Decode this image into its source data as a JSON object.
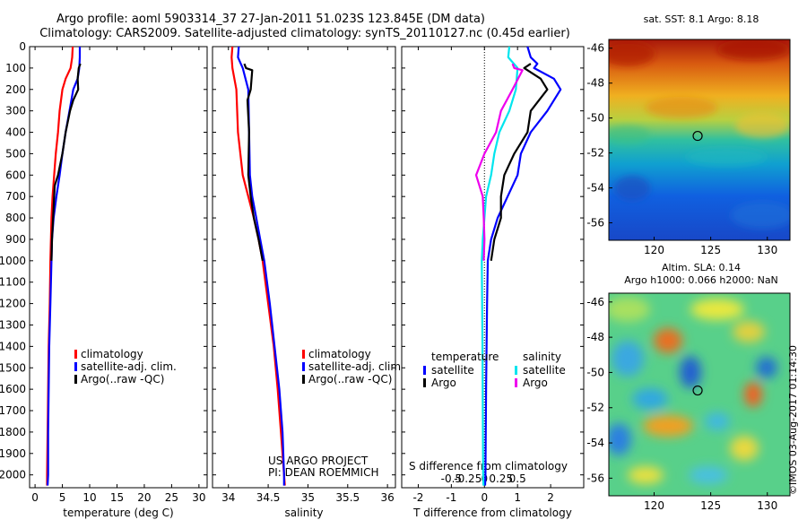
{
  "header": {
    "title_line1": "Argo profile: aoml 5903314_37 27-Jan-2011 51.023S 123.845E (DM data)",
    "title_line2": "Climatology: CARS2009. Satellite-adjusted climatology: synTS_20110127.nc (0.45d earlier)"
  },
  "colors": {
    "climatology": "#ff0000",
    "satellite": "#0000ff",
    "argo": "#000000",
    "sal_satellite": "#00e5ee",
    "sal_argo": "#ee00ee"
  },
  "chart_data": [
    {
      "id": "temperature",
      "type": "line",
      "xlabel": "temperature (deg C)",
      "ylabel": "",
      "xlim": [
        -1,
        31.5
      ],
      "ylim": [
        2060,
        0
      ],
      "xticks": [
        0,
        5,
        10,
        15,
        20,
        25,
        30
      ],
      "yticks": [
        0,
        100,
        200,
        300,
        400,
        500,
        600,
        700,
        800,
        900,
        1000,
        1100,
        1200,
        1300,
        1400,
        1500,
        1600,
        1700,
        1800,
        1900,
        2000
      ],
      "legend": {
        "position": "center-left",
        "items": [
          "climatology",
          "satellite-adj. clim.",
          "Argo(..raw -QC)"
        ]
      },
      "series": [
        {
          "name": "climatology",
          "color": "#ff0000",
          "points": [
            [
              6.9,
              0
            ],
            [
              6.8,
              50
            ],
            [
              6.5,
              100
            ],
            [
              5.6,
              150
            ],
            [
              5.0,
              200
            ],
            [
              4.5,
              300
            ],
            [
              4.2,
              400
            ],
            [
              3.8,
              500
            ],
            [
              3.5,
              600
            ],
            [
              3.2,
              700
            ],
            [
              3.0,
              800
            ],
            [
              2.9,
              900
            ],
            [
              2.8,
              1000
            ],
            [
              2.7,
              1200
            ],
            [
              2.5,
              1400
            ],
            [
              2.4,
              1600
            ],
            [
              2.3,
              1800
            ],
            [
              2.2,
              2000
            ],
            [
              2.2,
              2050
            ]
          ]
        },
        {
          "name": "satellite-adj. clim.",
          "color": "#0000ff",
          "points": [
            [
              8.2,
              0
            ],
            [
              8.2,
              50
            ],
            [
              8.1,
              100
            ],
            [
              7.8,
              150
            ],
            [
              7.0,
              200
            ],
            [
              6.3,
              300
            ],
            [
              5.6,
              400
            ],
            [
              5.0,
              500
            ],
            [
              4.5,
              600
            ],
            [
              3.9,
              700
            ],
            [
              3.4,
              800
            ],
            [
              3.1,
              900
            ],
            [
              3.0,
              1000
            ],
            [
              2.8,
              1200
            ],
            [
              2.6,
              1400
            ],
            [
              2.5,
              1600
            ],
            [
              2.4,
              1800
            ],
            [
              2.4,
              2000
            ],
            [
              2.3,
              2050
            ]
          ]
        },
        {
          "name": "Argo(..raw -QC)",
          "color": "#000000",
          "points": [
            [
              8.3,
              80
            ],
            [
              8.0,
              100
            ],
            [
              7.8,
              150
            ],
            [
              7.9,
              200
            ],
            [
              7.0,
              250
            ],
            [
              6.4,
              300
            ],
            [
              5.6,
              400
            ],
            [
              5.0,
              500
            ],
            [
              4.2,
              600
            ],
            [
              3.6,
              650
            ],
            [
              3.5,
              700
            ],
            [
              3.3,
              800
            ],
            [
              3.1,
              900
            ],
            [
              3.0,
              1000
            ]
          ]
        }
      ]
    },
    {
      "id": "salinity",
      "type": "line",
      "xlabel": "salinity",
      "ylabel": "",
      "xlim": [
        33.8,
        36.1
      ],
      "ylim": [
        2060,
        0
      ],
      "xticks": [
        34,
        34.5,
        35,
        35.5,
        36
      ],
      "legend": {
        "position": "center-right",
        "items": [
          "climatology",
          "satellite-adj. clim.",
          "Argo(..raw -QC)"
        ]
      },
      "annotation": [
        "US ARGO PROJECT",
        "PI: DEAN ROEMMICH"
      ],
      "series": [
        {
          "name": "climatology",
          "color": "#ff0000",
          "points": [
            [
              34.05,
              0
            ],
            [
              34.04,
              50
            ],
            [
              34.05,
              100
            ],
            [
              34.1,
              200
            ],
            [
              34.12,
              400
            ],
            [
              34.18,
              600
            ],
            [
              34.25,
              700
            ],
            [
              34.32,
              800
            ],
            [
              34.38,
              900
            ],
            [
              34.43,
              1000
            ],
            [
              34.5,
              1200
            ],
            [
              34.57,
              1400
            ],
            [
              34.62,
              1600
            ],
            [
              34.66,
              1800
            ],
            [
              34.7,
              2000
            ],
            [
              34.71,
              2050
            ]
          ]
        },
        {
          "name": "satellite-adj. clim.",
          "color": "#0000ff",
          "points": [
            [
              34.13,
              0
            ],
            [
              34.12,
              50
            ],
            [
              34.18,
              100
            ],
            [
              34.25,
              200
            ],
            [
              34.26,
              400
            ],
            [
              34.27,
              600
            ],
            [
              34.3,
              700
            ],
            [
              34.35,
              800
            ],
            [
              34.4,
              900
            ],
            [
              34.45,
              1000
            ],
            [
              34.52,
              1200
            ],
            [
              34.58,
              1400
            ],
            [
              34.64,
              1600
            ],
            [
              34.68,
              1800
            ],
            [
              34.7,
              2000
            ],
            [
              34.7,
              2050
            ]
          ]
        },
        {
          "name": "Argo(..raw -QC)",
          "color": "#000000",
          "points": [
            [
              34.2,
              80
            ],
            [
              34.22,
              100
            ],
            [
              34.3,
              110
            ],
            [
              34.28,
              200
            ],
            [
              34.24,
              250
            ],
            [
              34.26,
              400
            ],
            [
              34.25,
              600
            ],
            [
              34.28,
              700
            ],
            [
              34.32,
              800
            ],
            [
              34.38,
              900
            ],
            [
              34.43,
              1000
            ]
          ]
        }
      ]
    },
    {
      "id": "difference",
      "type": "line",
      "xlabel": "T difference from climatology",
      "xlabel_top": "S difference from climatology",
      "xlim": [
        -2.5,
        3
      ],
      "ylim": [
        2060,
        0
      ],
      "xticks": [
        -2,
        -1,
        0,
        1,
        2
      ],
      "xticks_top": [
        {
          "v": -0.5,
          "label": "-0.5"
        },
        {
          "v": -0.25,
          "label": "-0.25"
        },
        {
          "v": 0,
          "label": "0"
        },
        {
          "v": 0.25,
          "label": "0.25"
        },
        {
          "v": 0.5,
          "label": "0.5"
        }
      ],
      "legend": {
        "position": "center",
        "temperature": {
          "title": "temperature",
          "items": [
            "satellite",
            "Argo"
          ]
        },
        "salinity": {
          "title": "salinity",
          "items": [
            "satellite",
            "Argo"
          ]
        }
      },
      "series": [
        {
          "name": "T satellite",
          "color": "#0000ff",
          "points": [
            [
              1.3,
              0
            ],
            [
              1.4,
              50
            ],
            [
              1.6,
              80
            ],
            [
              1.5,
              100
            ],
            [
              2.1,
              150
            ],
            [
              2.3,
              200
            ],
            [
              1.9,
              300
            ],
            [
              1.4,
              400
            ],
            [
              1.1,
              500
            ],
            [
              1.0,
              600
            ],
            [
              0.7,
              700
            ],
            [
              0.4,
              800
            ],
            [
              0.2,
              900
            ],
            [
              0.1,
              1000
            ],
            [
              0.08,
              1200
            ],
            [
              0.05,
              1600
            ],
            [
              0.03,
              2000
            ],
            [
              0.02,
              2050
            ]
          ]
        },
        {
          "name": "T Argo",
          "color": "#000000",
          "points": [
            [
              1.4,
              80
            ],
            [
              1.2,
              100
            ],
            [
              1.7,
              150
            ],
            [
              1.9,
              200
            ],
            [
              1.4,
              300
            ],
            [
              1.3,
              400
            ],
            [
              0.9,
              500
            ],
            [
              0.6,
              600
            ],
            [
              0.5,
              700
            ],
            [
              0.5,
              800
            ],
            [
              0.3,
              900
            ],
            [
              0.2,
              1000
            ]
          ]
        },
        {
          "name": "S satellite",
          "color": "#00e5ee",
          "points": [
            [
              0.75,
              0
            ],
            [
              0.72,
              50
            ],
            [
              1.0,
              100
            ],
            [
              0.95,
              200
            ],
            [
              0.75,
              300
            ],
            [
              0.45,
              400
            ],
            [
              0.3,
              500
            ],
            [
              0.2,
              600
            ],
            [
              0.05,
              700
            ],
            [
              0.0,
              800
            ],
            [
              -0.05,
              900
            ],
            [
              -0.08,
              1000
            ],
            [
              -0.06,
              1400
            ],
            [
              -0.04,
              2000
            ],
            [
              -0.03,
              2050
            ]
          ]
        },
        {
          "name": "S Argo",
          "color": "#ee00ee",
          "points": [
            [
              0.85,
              80
            ],
            [
              0.9,
              100
            ],
            [
              1.15,
              110
            ],
            [
              0.85,
              200
            ],
            [
              0.5,
              300
            ],
            [
              0.35,
              400
            ],
            [
              0.0,
              500
            ],
            [
              -0.25,
              600
            ],
            [
              -0.05,
              700
            ],
            [
              -0.02,
              800
            ],
            [
              0.0,
              900
            ],
            [
              -0.02,
              1000
            ]
          ]
        }
      ]
    }
  ],
  "maps": {
    "sst": {
      "title": "sat. SST: 8.1 Argo: 8.18",
      "xticks": [
        120,
        125,
        130
      ],
      "yticks": [
        -46,
        -48,
        -50,
        -52,
        -54,
        -56
      ],
      "xlim": [
        116,
        132
      ],
      "ylim": [
        -57,
        -45.5
      ],
      "argo_position": {
        "lon": 123.845,
        "lat": -51.023
      }
    },
    "sla": {
      "title_line1": "Altim. SLA: 0.14",
      "title_line2": "Argo h1000: 0.066 h2000: NaN",
      "xticks": [
        120,
        125,
        130
      ],
      "yticks": [
        -46,
        -48,
        -50,
        -52,
        -54,
        -56
      ],
      "xlim": [
        116,
        132
      ],
      "ylim": [
        -57,
        -45.5
      ],
      "argo_position": {
        "lon": 123.845,
        "lat": -51.023
      }
    },
    "credit": "©IMOS 03-Aug-2017 01:14:30"
  }
}
